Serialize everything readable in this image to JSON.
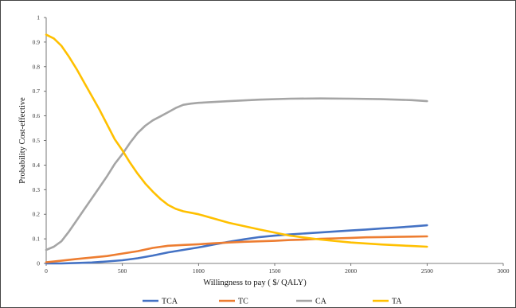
{
  "chart_data": {
    "type": "line",
    "title": "",
    "xlabel": "Willingness  to pay ( $/ QALY)",
    "ylabel": "Probability Cost-effective",
    "xlim": [
      0,
      3000
    ],
    "ylim": [
      0,
      1
    ],
    "xticks": [
      "0",
      "500",
      "1000",
      "1500",
      "2000",
      "2500",
      "3000"
    ],
    "yticks": [
      "0",
      "0.1",
      "0.2",
      "0.3",
      "0.4",
      "0.5",
      "0.6",
      "0.7",
      "0.8",
      "0.9",
      "1"
    ],
    "grid": false,
    "legend_position": "bottom",
    "series": [
      {
        "name": "TCA",
        "color": "#4472C4",
        "x": [
          0,
          100,
          200,
          300,
          400,
          500,
          600,
          700,
          800,
          900,
          1000,
          1100,
          1200,
          1300,
          1400,
          1500,
          1600,
          1700,
          1800,
          1900,
          2000,
          2100,
          2200,
          2300,
          2400,
          2500
        ],
        "y": [
          0,
          0,
          0.002,
          0.004,
          0.008,
          0.013,
          0.021,
          0.032,
          0.045,
          0.055,
          0.065,
          0.077,
          0.088,
          0.098,
          0.107,
          0.113,
          0.118,
          0.122,
          0.126,
          0.13,
          0.134,
          0.138,
          0.142,
          0.146,
          0.15,
          0.155
        ]
      },
      {
        "name": "TC",
        "color": "#ED7D31",
        "x": [
          0,
          100,
          200,
          300,
          400,
          500,
          600,
          700,
          800,
          900,
          1000,
          1100,
          1200,
          1300,
          1400,
          1500,
          1600,
          1700,
          1800,
          1900,
          2000,
          2100,
          2200,
          2300,
          2400,
          2500
        ],
        "y": [
          0.005,
          0.011,
          0.018,
          0.024,
          0.03,
          0.04,
          0.05,
          0.063,
          0.072,
          0.075,
          0.078,
          0.082,
          0.085,
          0.088,
          0.09,
          0.092,
          0.095,
          0.097,
          0.1,
          0.102,
          0.104,
          0.106,
          0.107,
          0.108,
          0.109,
          0.11
        ]
      },
      {
        "name": "CA",
        "color": "#A5A5A5",
        "x": [
          0,
          50,
          100,
          150,
          200,
          250,
          300,
          350,
          400,
          450,
          500,
          550,
          600,
          650,
          700,
          750,
          800,
          850,
          900,
          950,
          1000,
          1200,
          1400,
          1600,
          1800,
          2000,
          2200,
          2400,
          2500
        ],
        "y": [
          0.055,
          0.068,
          0.09,
          0.13,
          0.175,
          0.22,
          0.265,
          0.31,
          0.355,
          0.405,
          0.445,
          0.49,
          0.53,
          0.56,
          0.582,
          0.598,
          0.615,
          0.632,
          0.645,
          0.65,
          0.653,
          0.66,
          0.666,
          0.67,
          0.671,
          0.67,
          0.668,
          0.664,
          0.66
        ]
      },
      {
        "name": "TA",
        "color": "#FFC000",
        "x": [
          0,
          50,
          100,
          150,
          200,
          250,
          300,
          350,
          400,
          450,
          500,
          550,
          600,
          650,
          700,
          750,
          800,
          850,
          900,
          950,
          1000,
          1200,
          1400,
          1600,
          1800,
          2000,
          2200,
          2400,
          2500
        ],
        "y": [
          0.93,
          0.915,
          0.885,
          0.84,
          0.79,
          0.735,
          0.68,
          0.625,
          0.565,
          0.505,
          0.46,
          0.41,
          0.365,
          0.325,
          0.292,
          0.262,
          0.238,
          0.222,
          0.212,
          0.206,
          0.2,
          0.165,
          0.138,
          0.113,
          0.097,
          0.085,
          0.077,
          0.071,
          0.068
        ]
      }
    ]
  }
}
